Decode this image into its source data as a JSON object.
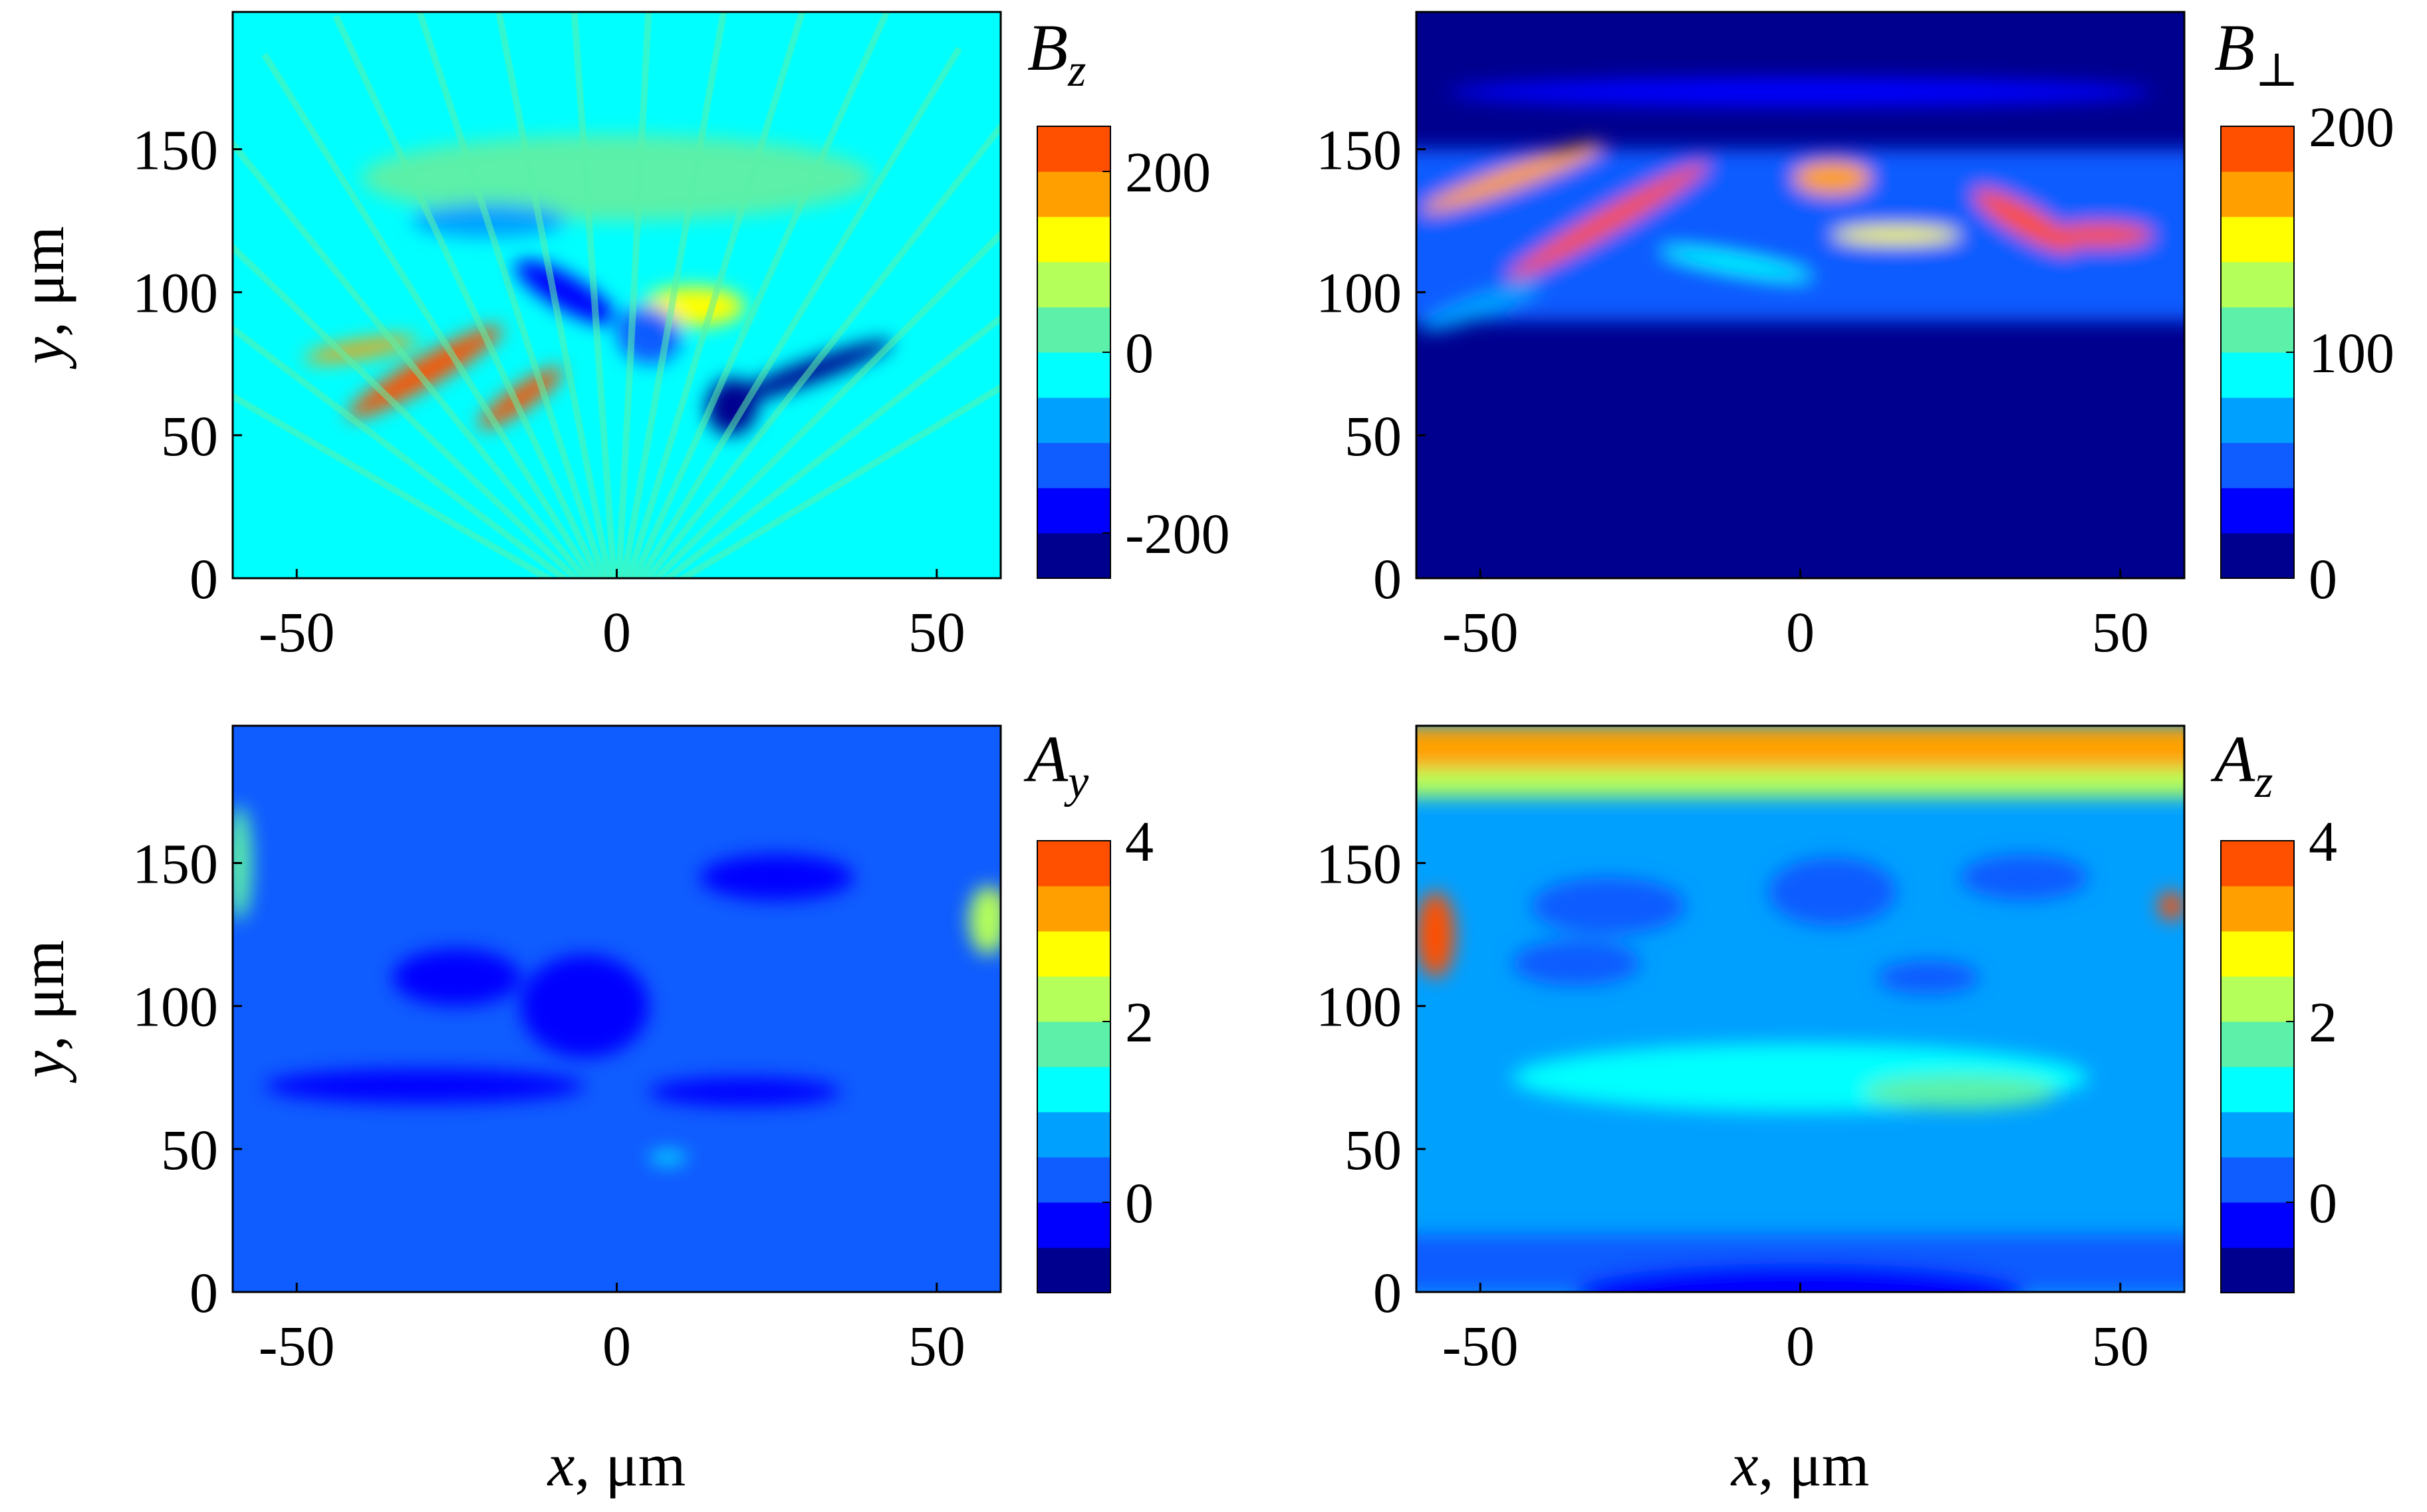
{
  "figure": {
    "colormap": [
      "#00008f",
      "#0000ff",
      "#0f5cff",
      "#00a0ff",
      "#00ffff",
      "#5cf0a8",
      "#b4ff5a",
      "#ffff00",
      "#ffa000",
      "#ff5000"
    ],
    "background": "#ffffff"
  },
  "chart_data": [
    {
      "type": "heatmap",
      "field": "B_z",
      "title_main": "B",
      "title_sub": "z",
      "xlabel": "",
      "ylabel_var": "y",
      "ylabel_unit": ", μm",
      "x_ticks": [
        "-50",
        "0",
        "50"
      ],
      "y_ticks": [
        "0",
        "50",
        "100",
        "150"
      ],
      "xlim": [
        -60,
        60
      ],
      "ylim": [
        0,
        198
      ],
      "colorbar": {
        "ticks": [
          "-200",
          "0",
          "200"
        ],
        "min": -250,
        "max": 250,
        "levels": 10
      },
      "background_level": 4,
      "features": [
        {
          "kind": "blob",
          "x": -30,
          "y": 72,
          "rx": 14,
          "ry": 5,
          "level": 9,
          "angle": -30
        },
        {
          "kind": "blob",
          "x": -15,
          "y": 63,
          "rx": 8,
          "ry": 4,
          "level": 9,
          "angle": -35
        },
        {
          "kind": "blob",
          "x": -40,
          "y": 80,
          "rx": 9,
          "ry": 3,
          "level": 8,
          "angle": -10
        },
        {
          "kind": "blob",
          "x": 12,
          "y": 95,
          "rx": 8,
          "ry": 7,
          "level": 7,
          "angle": 0
        },
        {
          "kind": "blob",
          "x": 5,
          "y": 85,
          "rx": 5,
          "ry": 10,
          "level": 2,
          "angle": 20
        },
        {
          "kind": "blob",
          "x": 30,
          "y": 72,
          "rx": 14,
          "ry": 4,
          "level": 0,
          "angle": -20
        },
        {
          "kind": "blob",
          "x": -8,
          "y": 100,
          "rx": 9,
          "ry": 6,
          "level": 1,
          "angle": 30
        },
        {
          "kind": "blob",
          "x": 18,
          "y": 60,
          "rx": 4,
          "ry": 10,
          "level": 0,
          "angle": 10
        },
        {
          "kind": "blob",
          "x": 0,
          "y": 140,
          "rx": 40,
          "ry": 15,
          "level": 5,
          "angle": 0
        },
        {
          "kind": "blob",
          "x": -20,
          "y": 125,
          "rx": 12,
          "ry": 6,
          "level": 3,
          "angle": 0
        },
        {
          "kind": "fan",
          "y0": 50
        }
      ]
    },
    {
      "type": "heatmap",
      "field": "B_perp",
      "title_main": "B",
      "title_sub": "⊥",
      "xlabel": "",
      "ylabel_var": "",
      "ylabel_unit": "",
      "x_ticks": [
        "-50",
        "0",
        "50"
      ],
      "y_ticks": [
        "0",
        "50",
        "100",
        "150"
      ],
      "xlim": [
        -60,
        60
      ],
      "ylim": [
        0,
        198
      ],
      "colorbar": {
        "ticks": [
          "0",
          "100",
          "200"
        ],
        "min": 0,
        "max": 200,
        "levels": 10
      },
      "background_level": 0,
      "features": [
        {
          "kind": "band",
          "y": 120,
          "h": 60,
          "level": 2
        },
        {
          "kind": "blob",
          "x": -45,
          "y": 140,
          "rx": 15,
          "ry": 4,
          "level": 8,
          "angle": -20
        },
        {
          "kind": "blob",
          "x": -30,
          "y": 125,
          "rx": 18,
          "ry": 4,
          "level": 9,
          "angle": -30
        },
        {
          "kind": "blob",
          "x": 5,
          "y": 140,
          "rx": 6,
          "ry": 6,
          "level": 8,
          "angle": 0
        },
        {
          "kind": "blob",
          "x": 15,
          "y": 120,
          "rx": 10,
          "ry": 3,
          "level": 7,
          "angle": 0
        },
        {
          "kind": "blob",
          "x": 35,
          "y": 125,
          "rx": 9,
          "ry": 5,
          "level": 9,
          "angle": 30
        },
        {
          "kind": "blob",
          "x": 47,
          "y": 120,
          "rx": 8,
          "ry": 4,
          "level": 9,
          "angle": 0
        },
        {
          "kind": "blob",
          "x": -10,
          "y": 110,
          "rx": 12,
          "ry": 3,
          "level": 4,
          "angle": 10
        },
        {
          "kind": "blob",
          "x": -50,
          "y": 95,
          "rx": 10,
          "ry": 4,
          "level": 3,
          "angle": -20
        },
        {
          "kind": "blob",
          "x": 0,
          "y": 170,
          "rx": 55,
          "ry": 5,
          "level": 1,
          "angle": 0
        }
      ]
    },
    {
      "type": "heatmap",
      "field": "A_y",
      "title_main": "A",
      "title_sub": "y",
      "xlabel": "",
      "ylabel_var": "y",
      "ylabel_unit": ", μm",
      "x_ticks": [
        "-50",
        "0",
        "50"
      ],
      "y_ticks": [
        "0",
        "50",
        "100",
        "150"
      ],
      "xlim": [
        -60,
        60
      ],
      "ylim": [
        0,
        198
      ],
      "colorbar": {
        "ticks": [
          "0",
          "2",
          "4"
        ],
        "min": -1,
        "max": 4,
        "levels": 10
      },
      "background_level": 2,
      "features": [
        {
          "kind": "blob",
          "x": -30,
          "y": 72,
          "rx": 25,
          "ry": 6,
          "level": 1,
          "angle": 0
        },
        {
          "kind": "blob",
          "x": 20,
          "y": 70,
          "rx": 15,
          "ry": 5,
          "level": 1,
          "angle": 0
        },
        {
          "kind": "blob",
          "x": -5,
          "y": 100,
          "rx": 10,
          "ry": 18,
          "level": 1,
          "angle": 0
        },
        {
          "kind": "blob",
          "x": -25,
          "y": 110,
          "rx": 10,
          "ry": 10,
          "level": 1,
          "angle": 0
        },
        {
          "kind": "blob",
          "x": 25,
          "y": 145,
          "rx": 12,
          "ry": 8,
          "level": 1,
          "angle": 0
        },
        {
          "kind": "blob",
          "x": 59,
          "y": 135,
          "rx": 2,
          "ry": 6,
          "level": 9,
          "angle": 0
        },
        {
          "kind": "blob",
          "x": 58,
          "y": 130,
          "rx": 3,
          "ry": 12,
          "level": 6,
          "angle": 0
        },
        {
          "kind": "blob",
          "x": -59,
          "y": 150,
          "rx": 2,
          "ry": 20,
          "level": 5,
          "angle": 0
        },
        {
          "kind": "blob",
          "x": 8,
          "y": 47,
          "rx": 3,
          "ry": 2,
          "level": 4,
          "angle": 0
        }
      ]
    },
    {
      "type": "heatmap",
      "field": "A_z",
      "title_main": "A",
      "title_sub": "z",
      "xlabel": "",
      "ylabel_var": "",
      "ylabel_unit": "",
      "x_ticks": [
        "-50",
        "0",
        "50"
      ],
      "y_ticks": [
        "0",
        "50",
        "100",
        "150"
      ],
      "xlim": [
        -60,
        60
      ],
      "ylim": [
        0,
        198
      ],
      "colorbar": {
        "ticks": [
          "0",
          "2",
          "4"
        ],
        "min": -1,
        "max": 4,
        "levels": 10
      },
      "background_level": 3,
      "features": [
        {
          "kind": "band",
          "y": 190,
          "h": 16,
          "level": 8
        },
        {
          "kind": "band",
          "y": 178,
          "h": 10,
          "level": 6
        },
        {
          "kind": "band",
          "y": 10,
          "h": 20,
          "level": 2
        },
        {
          "kind": "blob",
          "x": 0,
          "y": 0,
          "rx": 35,
          "ry": 10,
          "level": 1,
          "angle": 0
        },
        {
          "kind": "blob",
          "x": -30,
          "y": 135,
          "rx": 12,
          "ry": 10,
          "level": 2,
          "angle": 0
        },
        {
          "kind": "blob",
          "x": 5,
          "y": 140,
          "rx": 10,
          "ry": 12,
          "level": 2,
          "angle": 0
        },
        {
          "kind": "blob",
          "x": 35,
          "y": 145,
          "rx": 10,
          "ry": 8,
          "level": 2,
          "angle": 0
        },
        {
          "kind": "blob",
          "x": -35,
          "y": 115,
          "rx": 10,
          "ry": 8,
          "level": 2,
          "angle": 0
        },
        {
          "kind": "blob",
          "x": 20,
          "y": 110,
          "rx": 8,
          "ry": 6,
          "level": 2,
          "angle": 0
        },
        {
          "kind": "blob",
          "x": 0,
          "y": 75,
          "rx": 45,
          "ry": 12,
          "level": 4,
          "angle": 0
        },
        {
          "kind": "blob",
          "x": 25,
          "y": 70,
          "rx": 15,
          "ry": 6,
          "level": 5,
          "angle": 0
        },
        {
          "kind": "blob",
          "x": -57,
          "y": 125,
          "rx": 3,
          "ry": 15,
          "level": 9,
          "angle": 0
        },
        {
          "kind": "blob",
          "x": 58,
          "y": 135,
          "rx": 2,
          "ry": 5,
          "level": 9,
          "angle": 0
        }
      ]
    }
  ],
  "bottom_xlabel": {
    "var": "x",
    "unit": ", μm"
  }
}
